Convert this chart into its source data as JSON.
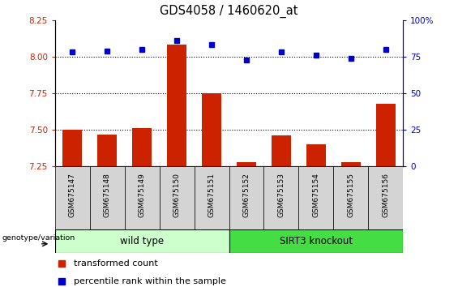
{
  "title": "GDS4058 / 1460620_at",
  "samples": [
    "GSM675147",
    "GSM675148",
    "GSM675149",
    "GSM675150",
    "GSM675151",
    "GSM675152",
    "GSM675153",
    "GSM675154",
    "GSM675155",
    "GSM675156"
  ],
  "transformed_count": [
    7.5,
    7.47,
    7.51,
    8.08,
    7.75,
    7.28,
    7.46,
    7.4,
    7.28,
    7.68
  ],
  "percentile_rank": [
    78,
    79,
    80,
    86,
    83,
    73,
    78,
    76,
    74,
    80
  ],
  "ylim_left": [
    7.25,
    8.25
  ],
  "ylim_right": [
    0,
    100
  ],
  "yticks_left": [
    7.25,
    7.5,
    7.75,
    8.0,
    8.25
  ],
  "yticks_right": [
    0,
    25,
    50,
    75,
    100
  ],
  "ytick_labels_right": [
    "0",
    "25",
    "50",
    "75",
    "100%"
  ],
  "grid_values": [
    7.5,
    7.75,
    8.0
  ],
  "bar_color": "#cc2200",
  "dot_color": "#0000cc",
  "bar_bottom": 7.25,
  "wild_type_label": "wild type",
  "knockout_label": "SIRT3 knockout",
  "wild_type_color": "#ccffcc",
  "knockout_color": "#44dd44",
  "group_label": "genotype/variation",
  "legend_bar_label": "transformed count",
  "legend_dot_label": "percentile rank within the sample",
  "tick_color_left": "#cc2200",
  "tick_color_right": "#0000cc",
  "label_box_color": "#d4d4d4",
  "n_wild_type": 5,
  "n_knockout": 5
}
